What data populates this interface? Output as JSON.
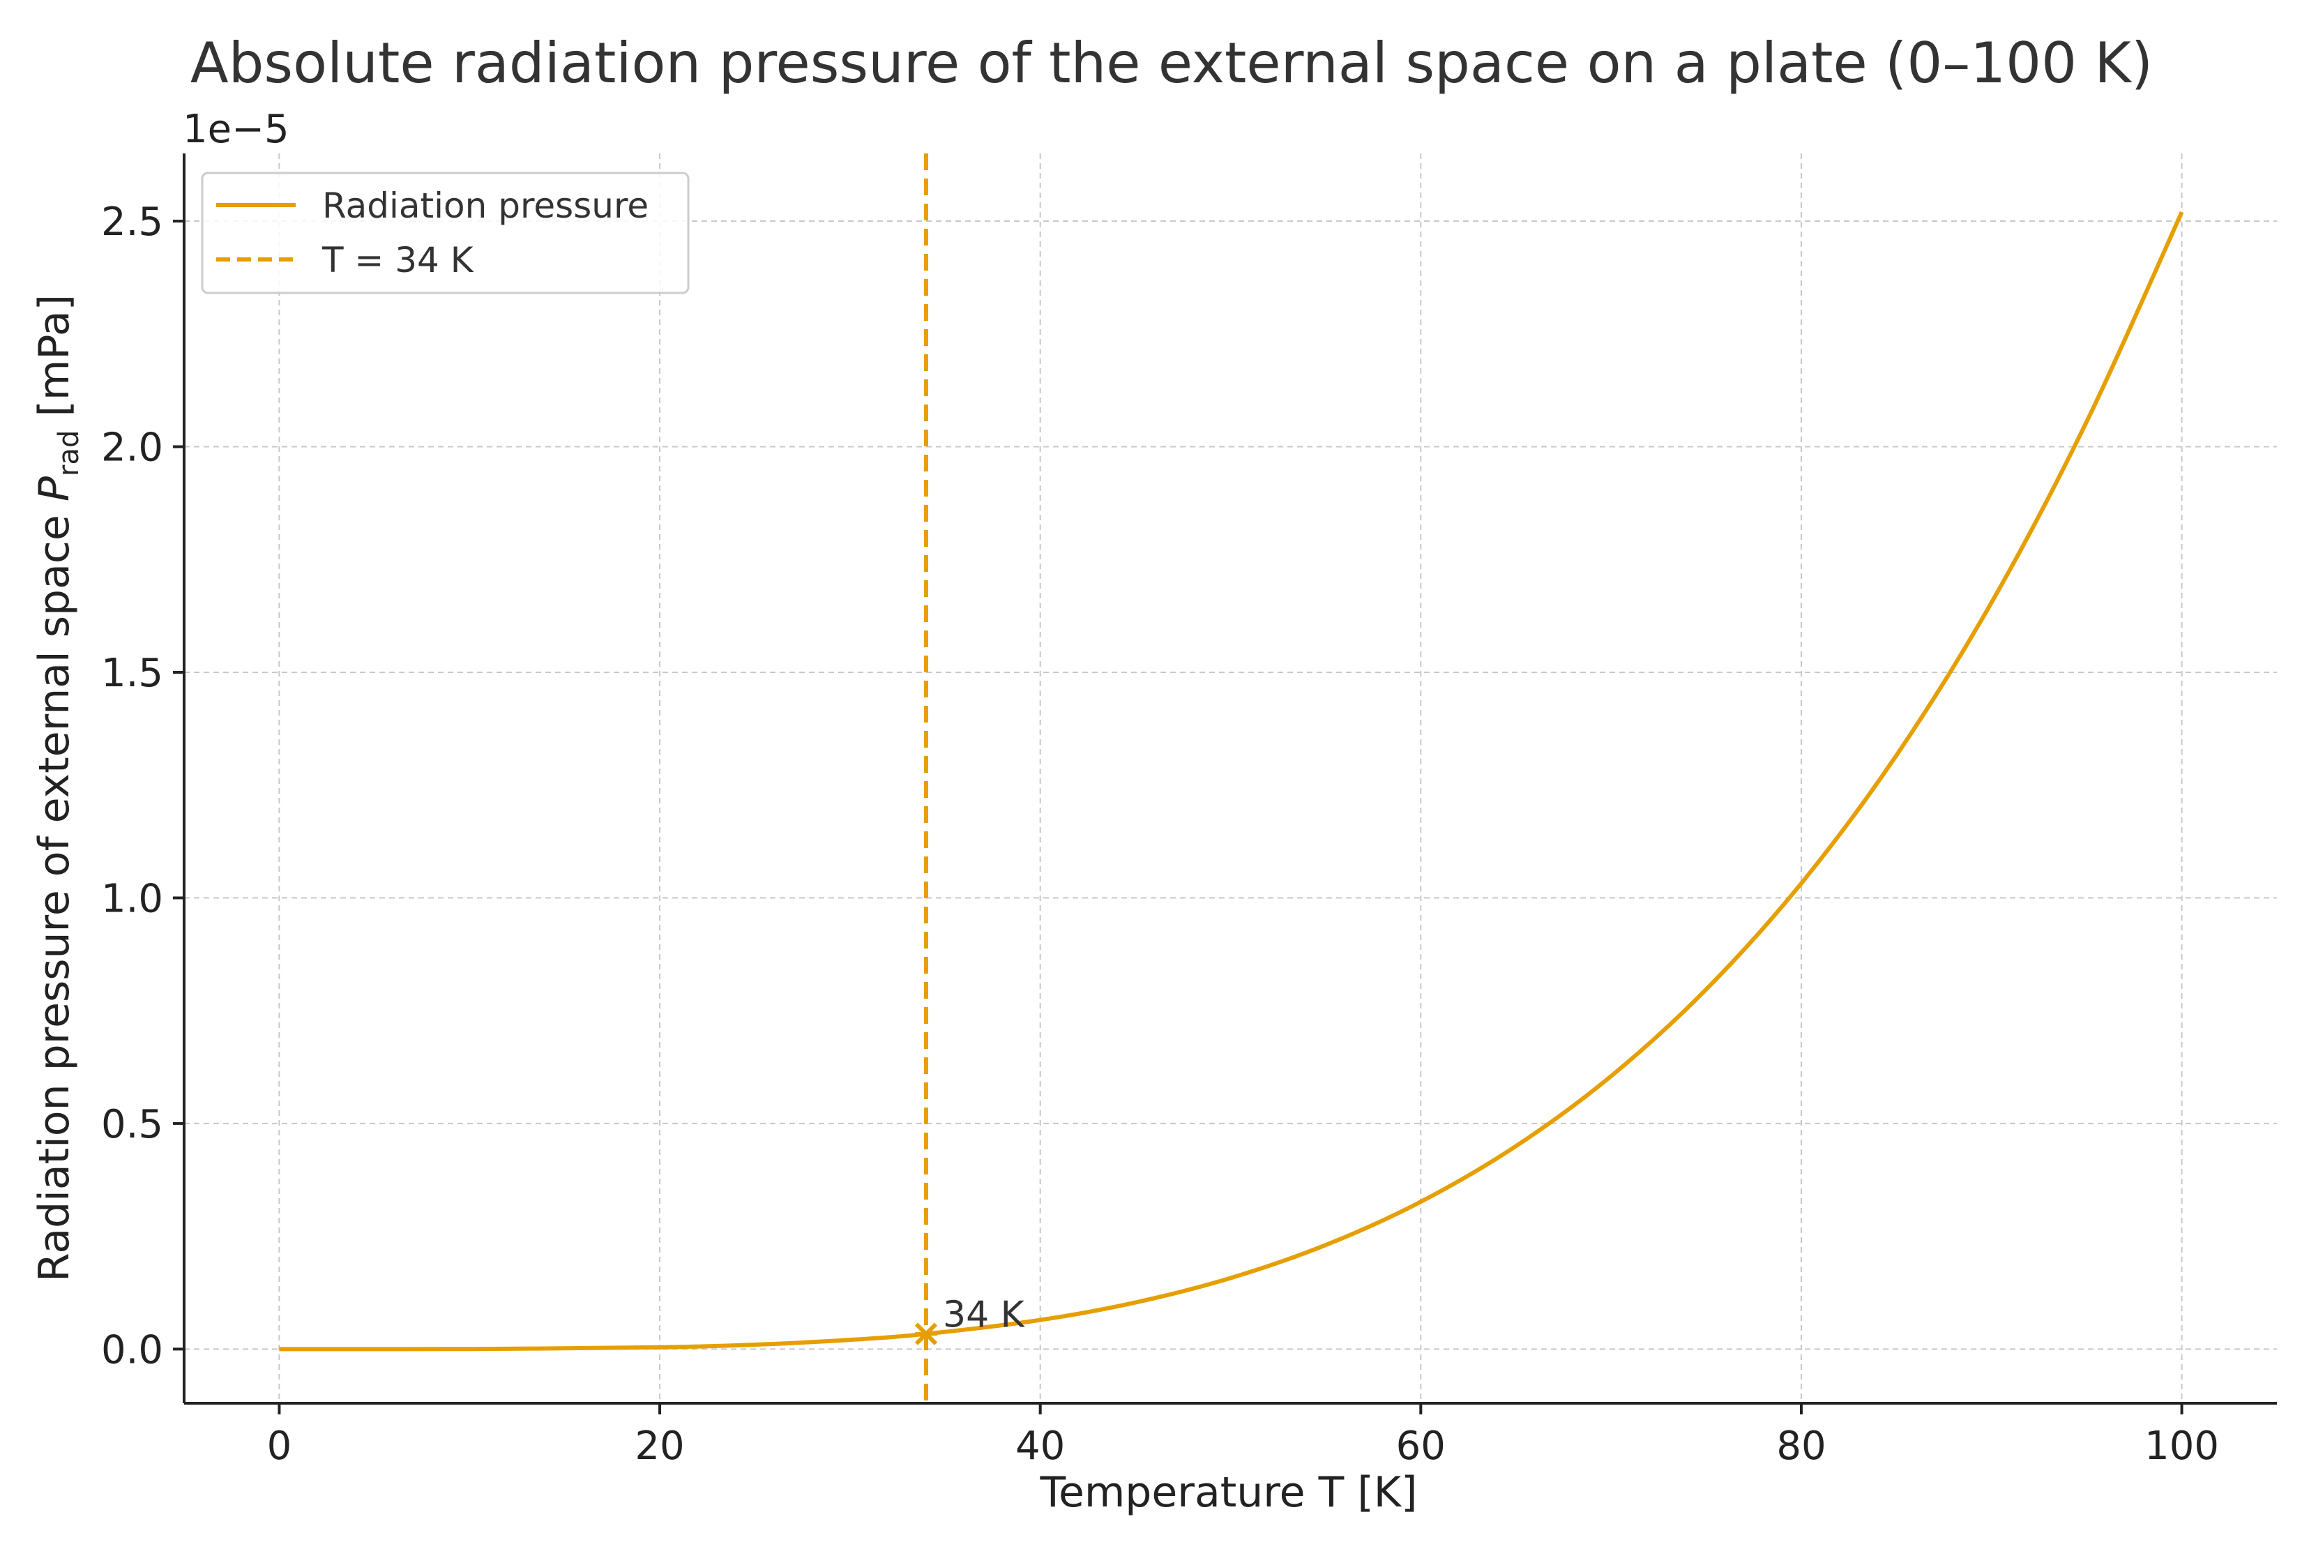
{
  "chart_data": {
    "type": "line",
    "title": "Absolute radiation pressure of the external space on a plate (0–100 K)",
    "xlabel": "Temperature T [K]",
    "ylabel_prefix": "Radiation pressure of external space ",
    "ylabel_symbol": "P",
    "ylabel_subscript": "rad",
    "ylabel_suffix": " [mPa]",
    "y_scale_label": "1e−5",
    "y_scale_factor": 1e-05,
    "xlim": [
      -5,
      105
    ],
    "ylim": [
      -0.12,
      2.65
    ],
    "xticks": [
      0,
      20,
      40,
      60,
      80,
      100
    ],
    "xtick_labels": [
      "0",
      "20",
      "40",
      "60",
      "80",
      "100"
    ],
    "yticks": [
      0.0,
      0.5,
      1.0,
      1.5,
      2.0,
      2.5
    ],
    "ytick_labels": [
      "0.0",
      "0.5",
      "1.0",
      "1.5",
      "2.0",
      "2.5"
    ],
    "grid": true,
    "legend_position": "top-left",
    "series": [
      {
        "name": "Radiation pressure",
        "style": "solid",
        "color": "#E69F00",
        "x": [
          0,
          10,
          20,
          25,
          30,
          34,
          40,
          45,
          50,
          55,
          60,
          65,
          70,
          75,
          80,
          85,
          90,
          95,
          100
        ],
        "y": [
          0.0,
          0.00025,
          0.00403,
          0.00985,
          0.0204,
          0.0337,
          0.0645,
          0.1033,
          0.1575,
          0.2306,
          0.3266,
          0.4498,
          0.6049,
          0.7972,
          1.0322,
          1.3159,
          1.6547,
          2.0555,
          2.52
        ]
      },
      {
        "name": "T = 34 K",
        "style": "dashed",
        "color": "#E69F00",
        "x_value": 34
      }
    ],
    "marker": {
      "x": 34,
      "y": 0.0337,
      "symbol": "x",
      "color": "#E69F00"
    },
    "annotations": [
      {
        "text": "34 K",
        "x": 34,
        "y": 0.0337
      }
    ]
  }
}
